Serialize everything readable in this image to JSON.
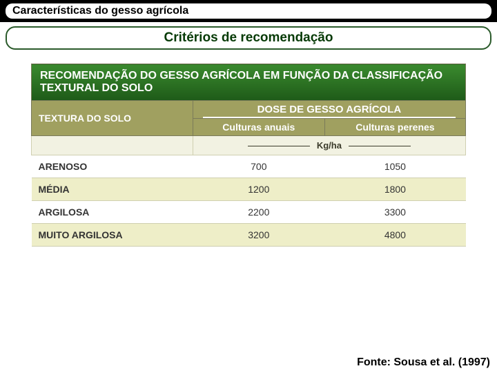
{
  "header": {
    "title": "Características do gesso agrícola",
    "subtitle": "Critérios de recomendação"
  },
  "table": {
    "title": "RECOMENDAÇÃO DO GESSO AGRÍCOLA EM FUNÇÃO DA CLASSIFICAÇÃO TEXTURAL DO SOLO",
    "left_header": "TEXTURA DO SOLO",
    "dose_header": "DOSE DE GESSO AGRÍCOLA",
    "sub_headers": [
      "Culturas anuais",
      "Culturas perenes"
    ],
    "unit_label": "Kg/ha",
    "rows": [
      {
        "label": "ARENOSO",
        "annual": "700",
        "perennial": "1050"
      },
      {
        "label": "MÉDIA",
        "annual": "1200",
        "perennial": "1800"
      },
      {
        "label": "ARGILOSA",
        "annual": "2200",
        "perennial": "3300"
      },
      {
        "label": "MUITO ARGILOSA",
        "annual": "3200",
        "perennial": "4800"
      }
    ],
    "colors": {
      "title_bg_top": "#3a8a2e",
      "title_bg_bottom": "#1e5a18",
      "header_bg": "#a0a060",
      "row_a": "#ffffff",
      "row_b": "#eeeec8",
      "unit_bg": "#f2f2e2",
      "border": "#cfcfb0",
      "text": "#333333"
    }
  },
  "source": "Fonte: Sousa et al. (1997)"
}
